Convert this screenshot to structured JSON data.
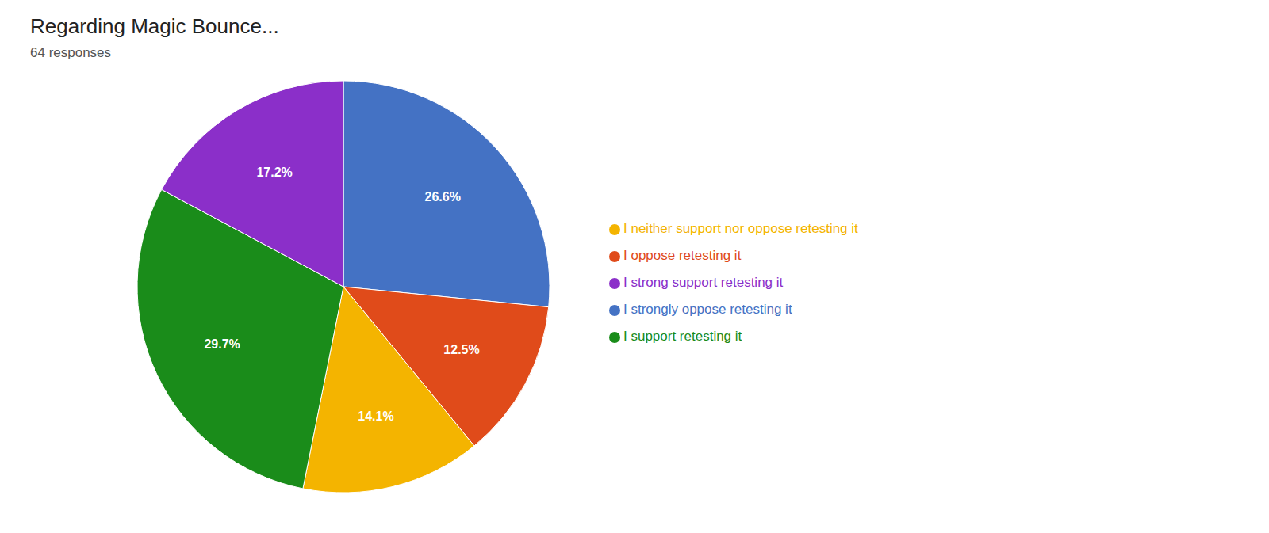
{
  "chart_data": {
    "type": "pie",
    "title": "Regarding Magic Bounce...",
    "subtitle": "64 responses",
    "categories": [
      "I strongly oppose retesting it",
      "I oppose retesting it",
      "I neither support nor oppose retesting it",
      "I support retesting it",
      "I strong support retesting it"
    ],
    "values": [
      26.6,
      12.5,
      14.1,
      29.7,
      17.2
    ],
    "value_labels": [
      "26.6%",
      "12.5%",
      "14.1%",
      "29.7%",
      "17.2%"
    ],
    "colors": [
      "#4472C4",
      "#E04B1A",
      "#F4B400",
      "#1A8C1A",
      "#8B2FC9"
    ],
    "data_labels": true,
    "legend": "right"
  }
}
